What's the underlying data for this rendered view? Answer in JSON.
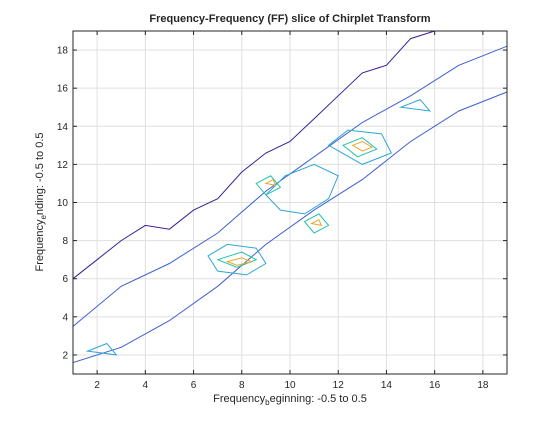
{
  "chart_data": {
    "type": "contour",
    "title": "Frequency-Frequency (FF) slice of Chirplet Transform",
    "xlabel": {
      "prefix": "Frequency",
      "subscript": "b",
      "suffix": "eginning: -0.5 to 0.5"
    },
    "ylabel": {
      "prefix": "Frequency",
      "subscript": "e",
      "suffix": "nding: -0.5 to 0.5"
    },
    "xlim": [
      1,
      19
    ],
    "ylim": [
      1,
      19
    ],
    "xticks": [
      2,
      4,
      6,
      8,
      10,
      12,
      14,
      16,
      18
    ],
    "yticks": [
      2,
      4,
      6,
      8,
      10,
      12,
      14,
      16,
      18
    ],
    "grid": true,
    "colormap": [
      "#3b1f95",
      "#3e5fd1",
      "#2ea6d6",
      "#22c3a7",
      "#a7c93a",
      "#eaa72e"
    ],
    "contour_levels": [
      {
        "level": 1,
        "color": "#3b1f95",
        "polygons": [
          [
            [
              1,
              6
            ],
            [
              2,
              7
            ],
            [
              3,
              8
            ],
            [
              4,
              8.8
            ],
            [
              5,
              8.6
            ],
            [
              6,
              9.6
            ],
            [
              7,
              10.2
            ],
            [
              8,
              11.6
            ],
            [
              9,
              12.6
            ],
            [
              10,
              13.2
            ],
            [
              11,
              14.4
            ],
            [
              12,
              15.6
            ],
            [
              13,
              16.8
            ],
            [
              14,
              17.2
            ],
            [
              15,
              18.6
            ],
            [
              16,
              19
            ]
          ]
        ]
      },
      {
        "level": 2,
        "color": "#3e5fd1",
        "polygons": [
          [
            [
              1,
              3.5
            ],
            [
              3,
              5.6
            ],
            [
              5,
              6.8
            ],
            [
              7,
              8.4
            ],
            [
              9,
              10.6
            ],
            [
              11,
              12.4
            ],
            [
              13,
              14.2
            ],
            [
              15,
              15.6
            ],
            [
              17,
              17.2
            ],
            [
              19,
              18.2
            ],
            [
              19,
              15.8
            ],
            [
              17,
              14.8
            ],
            [
              15,
              13.2
            ],
            [
              13,
              11.2
            ],
            [
              11,
              9.6
            ],
            [
              9,
              7.8
            ],
            [
              7,
              5.6
            ],
            [
              5,
              3.8
            ],
            [
              3,
              2.4
            ],
            [
              1,
              1.6
            ]
          ]
        ]
      },
      {
        "level": 3,
        "color": "#2ea6d6",
        "polygons": [
          [
            [
              6.6,
              7.2
            ],
            [
              7.4,
              7.8
            ],
            [
              8.6,
              7.6
            ],
            [
              9,
              6.8
            ],
            [
              8.2,
              6.2
            ],
            [
              7,
              6.4
            ]
          ],
          [
            [
              9,
              10.4
            ],
            [
              9.8,
              11.4
            ],
            [
              11,
              12
            ],
            [
              12,
              11.4
            ],
            [
              11.6,
              10.2
            ],
            [
              10.6,
              9.4
            ],
            [
              9.6,
              9.6
            ]
          ],
          [
            [
              11.6,
              13
            ],
            [
              12.4,
              13.8
            ],
            [
              13.8,
              13.6
            ],
            [
              14.2,
              12.6
            ],
            [
              13,
              12
            ]
          ],
          [
            [
              1.6,
              2.2
            ],
            [
              2.4,
              2.6
            ],
            [
              2.8,
              2
            ]
          ],
          [
            [
              14.6,
              15
            ],
            [
              15.4,
              15.4
            ],
            [
              15.8,
              14.8
            ]
          ]
        ]
      },
      {
        "level": 4,
        "color": "#22c3a7",
        "polygons": [
          [
            [
              7,
              7
            ],
            [
              8,
              7.4
            ],
            [
              8.6,
              7
            ],
            [
              7.8,
              6.6
            ]
          ],
          [
            [
              8.6,
              11
            ],
            [
              9.2,
              11.4
            ],
            [
              9.6,
              10.8
            ],
            [
              9,
              10.4
            ]
          ],
          [
            [
              10.6,
              9
            ],
            [
              11.2,
              9.4
            ],
            [
              11.6,
              8.8
            ],
            [
              11,
              8.4
            ]
          ],
          [
            [
              12.2,
              13
            ],
            [
              13,
              13.4
            ],
            [
              13.6,
              12.8
            ],
            [
              12.8,
              12.4
            ]
          ]
        ]
      },
      {
        "level": 5,
        "color": "#eaa72e",
        "polygons": [
          [
            [
              7.4,
              6.9
            ],
            [
              8,
              7.1
            ],
            [
              8.4,
              6.9
            ],
            [
              7.8,
              6.7
            ]
          ],
          [
            [
              12.6,
              13
            ],
            [
              13,
              13.2
            ],
            [
              13.4,
              12.9
            ],
            [
              13,
              12.7
            ]
          ],
          [
            [
              9,
              11
            ],
            [
              9.3,
              11.2
            ],
            [
              9.4,
              10.9
            ]
          ],
          [
            [
              10.9,
              8.9
            ],
            [
              11.2,
              9.1
            ],
            [
              11.3,
              8.8
            ]
          ]
        ]
      }
    ]
  }
}
